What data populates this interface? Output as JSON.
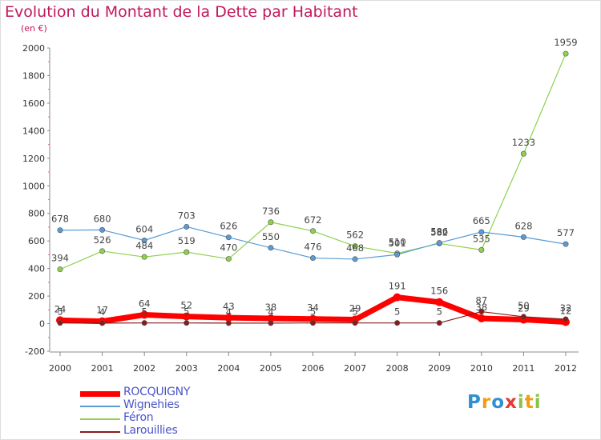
{
  "title": "Evolution du Montant de la Dette par Habitant",
  "unit": "(en €)",
  "logo": {
    "text": "Proxiti"
  },
  "chart_data": {
    "type": "line",
    "x": [
      "2000",
      "2001",
      "2002",
      "2003",
      "2004",
      "2005",
      "2006",
      "2007",
      "2008",
      "2009",
      "2010",
      "2011",
      "2012"
    ],
    "ylim": [
      -200,
      2000
    ],
    "yticks": [
      -200,
      0,
      200,
      400,
      600,
      800,
      1000,
      1200,
      1400,
      1600,
      1800,
      2000
    ],
    "grid": false,
    "legend_position": "bottom-left",
    "series": [
      {
        "name": "ROCQUIGNY",
        "color": "#ff0000",
        "style": "thick",
        "values": [
          24,
          17,
          64,
          52,
          43,
          38,
          34,
          29,
          191,
          156,
          38,
          29,
          12
        ],
        "labels": [
          "24",
          "17",
          "64",
          "52",
          "43",
          "38",
          "34",
          "29",
          "191",
          "156",
          "38",
          "29",
          "12"
        ]
      },
      {
        "name": "Wignehies",
        "color": "#5b9bd5",
        "style": "thin",
        "values": [
          678,
          680,
          604,
          703,
          626,
          550,
          476,
          468,
          501,
          586,
          665,
          628,
          577
        ],
        "labels": [
          "678",
          "680",
          "604",
          "703",
          "626",
          "550",
          "476",
          "468",
          "501",
          "586",
          "665",
          "628",
          "577"
        ]
      },
      {
        "name": "Féron",
        "color": "#8fd14f",
        "style": "thin",
        "values": [
          394,
          526,
          484,
          519,
          470,
          736,
          672,
          562,
          510,
          582,
          535,
          1233,
          1959
        ],
        "labels": [
          "394",
          "526",
          "484",
          "519",
          "470",
          "736",
          "672",
          "562",
          "510",
          "582",
          "535",
          "1233",
          "1959"
        ]
      },
      {
        "name": "Larouillies",
        "color": "#8b1a1a",
        "style": "thin",
        "values": [
          5,
          4,
          5,
          5,
          4,
          4,
          5,
          5,
          5,
          5,
          87,
          50,
          32
        ],
        "labels": [
          "5",
          "4",
          "5",
          "5",
          "4",
          "4",
          "5",
          "5",
          "5",
          "5",
          "87",
          "50",
          "32"
        ]
      }
    ]
  }
}
